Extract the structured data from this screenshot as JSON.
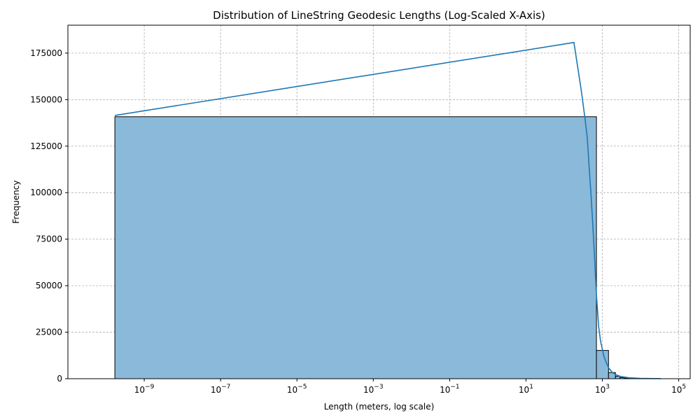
{
  "chart_data": {
    "type": "bar",
    "title": "Distribution of LineString Geodesic Lengths (Log-Scaled X-Axis)",
    "xlabel": "Length (meters, log scale)",
    "ylabel": "Frequency",
    "x_scale": "log",
    "xlim": [
      1e-11,
      200000.0
    ],
    "ylim": [
      0,
      190000
    ],
    "grid": true,
    "bar_color": "#8bb9d9",
    "bar_edge_color": "#000000",
    "kde_color": "#1f77b4",
    "x_ticks": [
      {
        "base": "10",
        "exp": "−9",
        "value": 1e-09
      },
      {
        "base": "10",
        "exp": "−7",
        "value": 1e-07
      },
      {
        "base": "10",
        "exp": "−5",
        "value": 1e-05
      },
      {
        "base": "10",
        "exp": "−3",
        "value": 0.001
      },
      {
        "base": "10",
        "exp": "−1",
        "value": 0.1
      },
      {
        "base": "10",
        "exp": "1",
        "value": 10.0
      },
      {
        "base": "10",
        "exp": "3",
        "value": 1000.0
      },
      {
        "base": "10",
        "exp": "5",
        "value": 100000.0
      }
    ],
    "y_ticks": [
      {
        "label": "0",
        "value": 0
      },
      {
        "label": "25000",
        "value": 25000
      },
      {
        "label": "50000",
        "value": 50000
      },
      {
        "label": "75000",
        "value": 75000
      },
      {
        "label": "100000",
        "value": 100000
      },
      {
        "label": "125000",
        "value": 125000
      },
      {
        "label": "150000",
        "value": 150000
      },
      {
        "label": "175000",
        "value": 175000
      }
    ],
    "bins": [
      {
        "x0": 1.7e-10,
        "x1": 700,
        "count": 140800
      },
      {
        "x0": 700,
        "x1": 1450,
        "count": 15200
      },
      {
        "x0": 1450,
        "x1": 2200,
        "count": 3300
      },
      {
        "x0": 2200,
        "x1": 2900,
        "count": 1300
      },
      {
        "x0": 2900,
        "x1": 3700,
        "count": 600
      },
      {
        "x0": 3700,
        "x1": 4500,
        "count": 300
      },
      {
        "x0": 4500,
        "x1": 6000,
        "count": 150
      },
      {
        "x0": 6000,
        "x1": 9000,
        "count": 80
      },
      {
        "x0": 9000,
        "x1": 15000,
        "count": 40
      },
      {
        "x0": 15000,
        "x1": 34000,
        "count": 20
      }
    ],
    "kde": {
      "x": [
        1.7e-10,
        180,
        280,
        350,
        400,
        500,
        550,
        600,
        700,
        800,
        900,
        1100,
        1300,
        1500,
        1800,
        2200,
        3000,
        5000,
        10000,
        34000
      ],
      "y": [
        141500,
        180700,
        155000,
        140000,
        130000,
        100000,
        86000,
        72000,
        45000,
        28000,
        20000,
        12000,
        8000,
        5500,
        3500,
        2200,
        1200,
        500,
        150,
        50
      ]
    }
  }
}
